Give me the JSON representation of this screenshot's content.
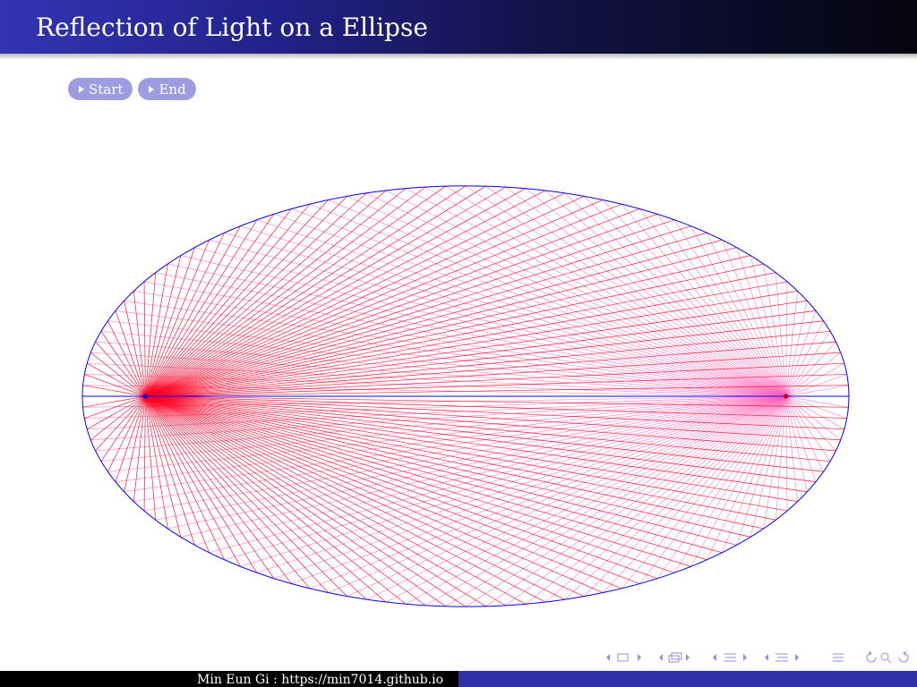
{
  "frame": {
    "title": "Reflection of Light on a Ellipse"
  },
  "controls": {
    "start_label": "Start",
    "end_label": "End"
  },
  "footer": {
    "author": "Min Eun Gi : https://min7014.github.io"
  },
  "diagram": {
    "ray_count": 120,
    "semi_axis_ratio": 1.82
  },
  "colors": {
    "ellipse": "#0000ff",
    "ray": "#ff0022",
    "reflected_ray": "#ff66bb",
    "source_point": "#0000cc",
    "focus_point": "#cc0000",
    "title_bar_start": "#3434b4",
    "title_bar_end": "#05050f",
    "button": "#9c9ce0",
    "nav_icon": "#9090d8"
  },
  "nav_icons": [
    "frame-prev-icon",
    "frame-icon",
    "frame-next-icon",
    "subsection-prev-icon",
    "subsection-icon",
    "subsection-next-icon",
    "section-prev-icon",
    "section-icon",
    "section-next-icon",
    "presentation-prev-icon",
    "presentation-icon",
    "presentation-next-icon",
    "toc-icon",
    "back-icon",
    "search-icon",
    "forward-icon"
  ]
}
